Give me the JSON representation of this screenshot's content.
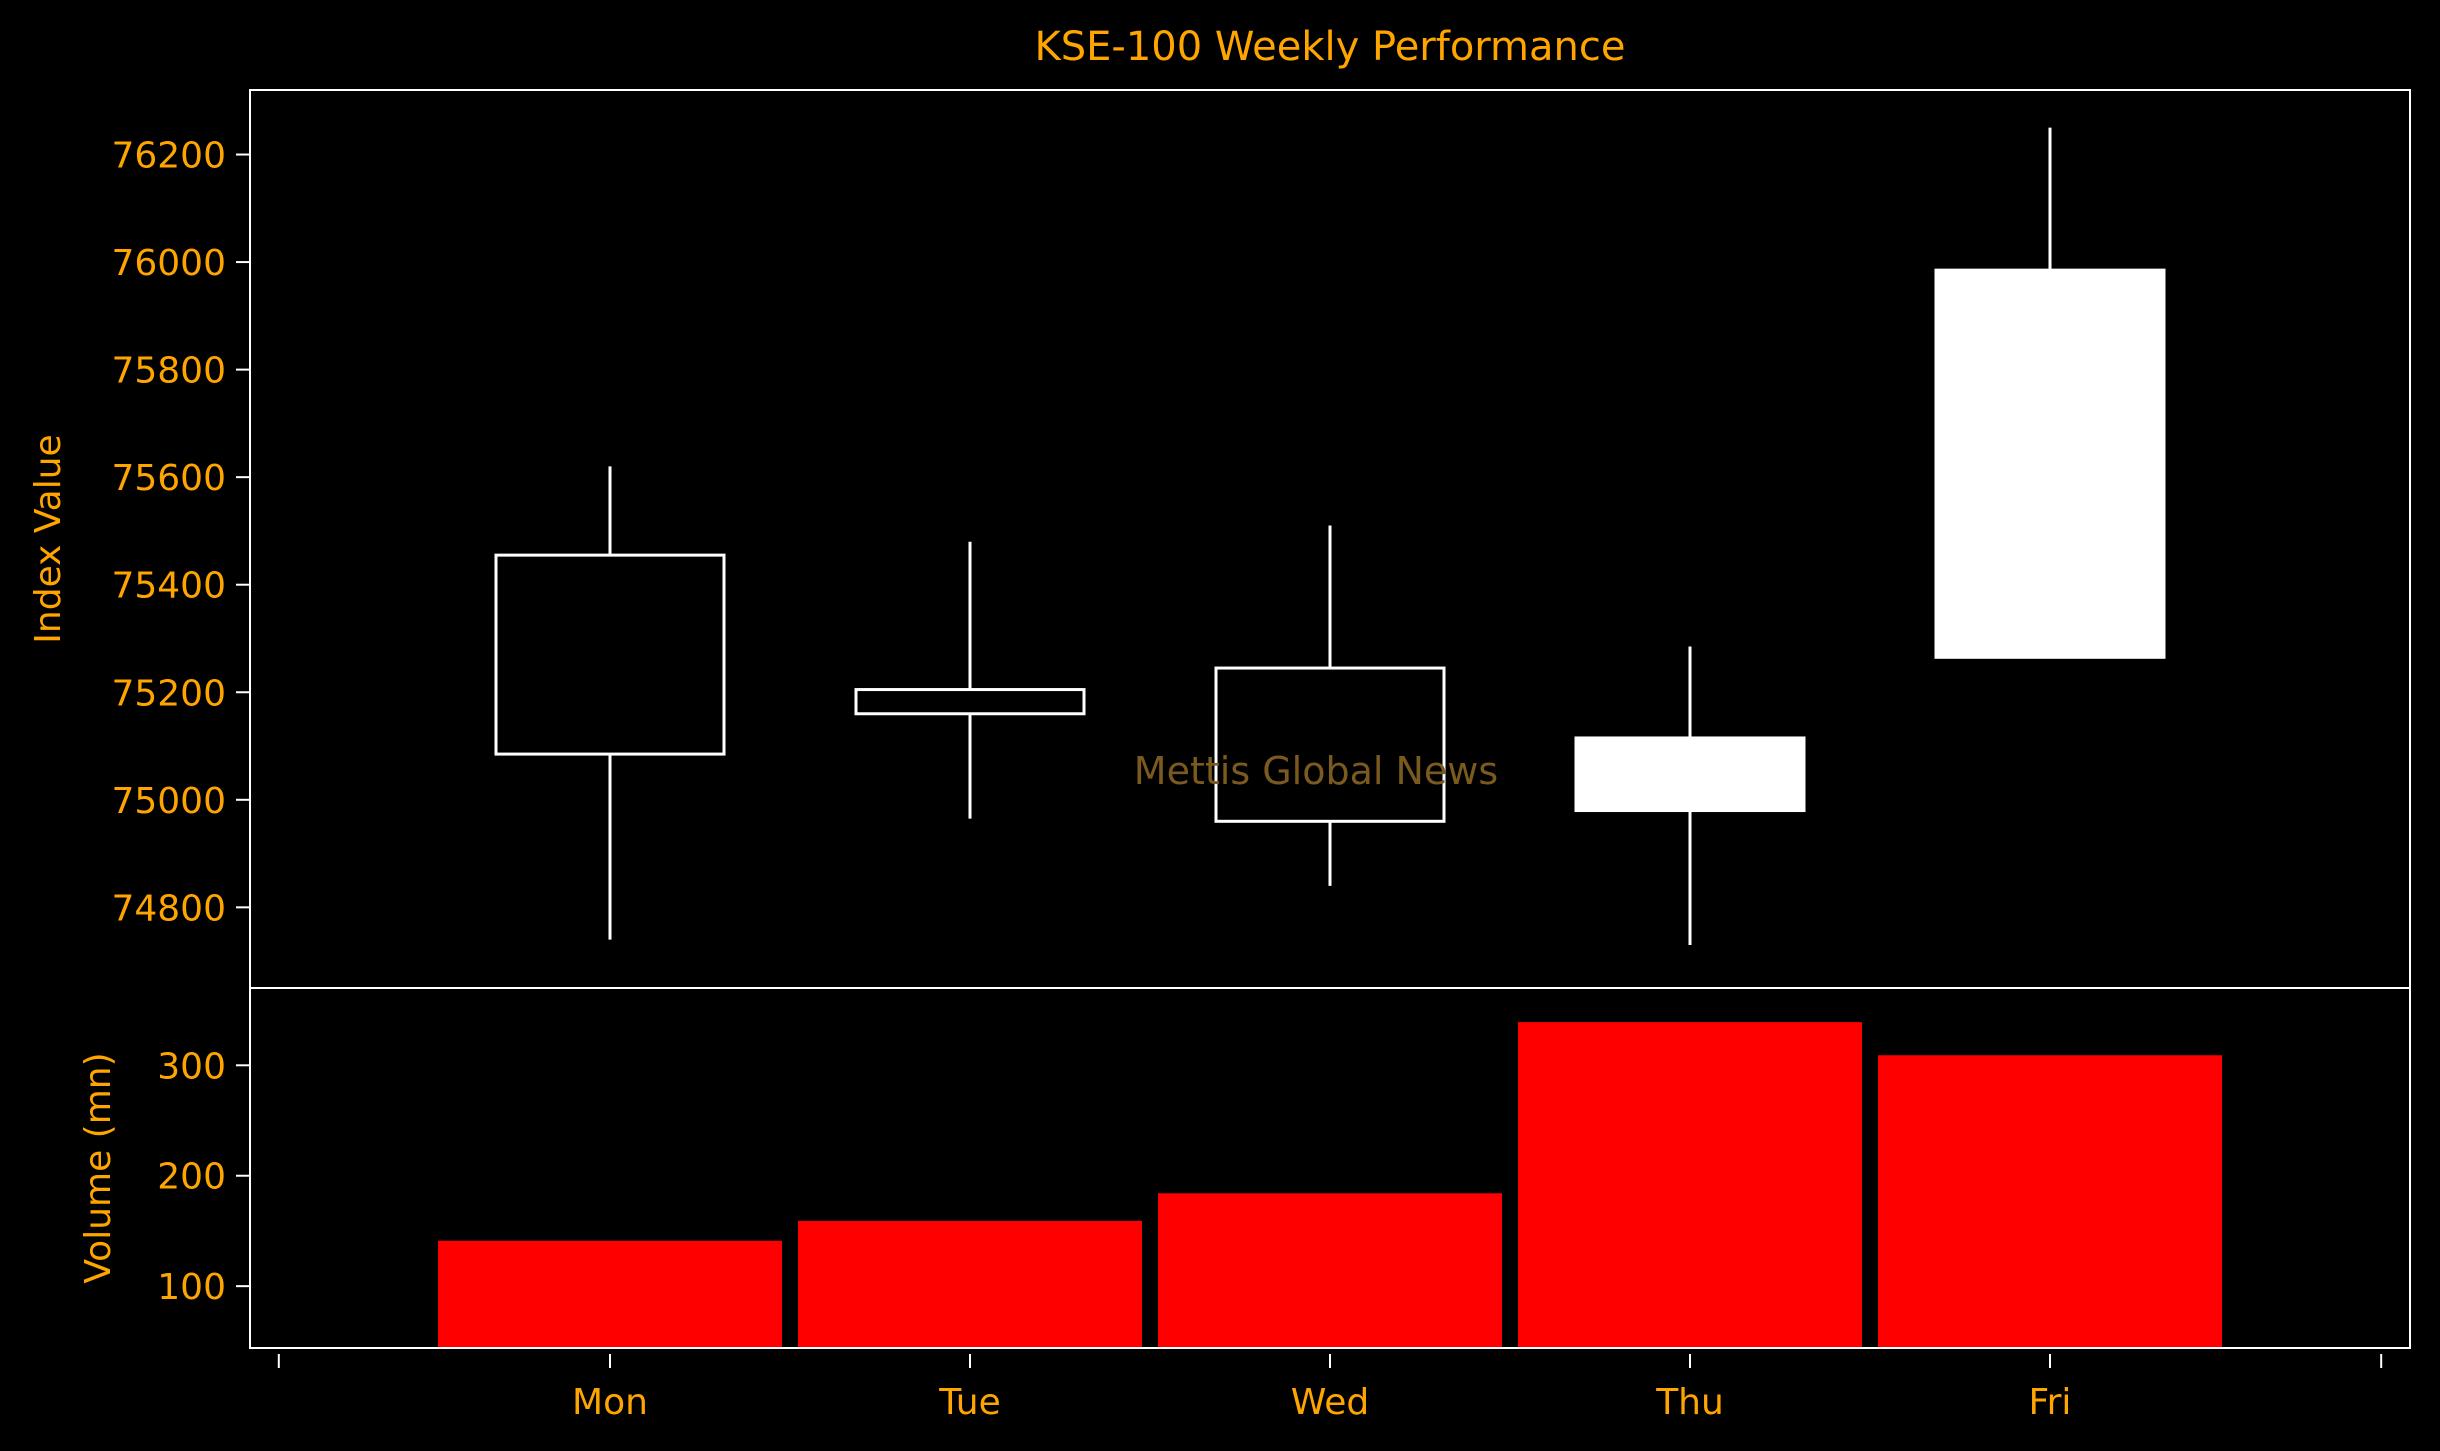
{
  "chart_data": {
    "type": "candlestick",
    "title": "KSE-100 Weekly Performance",
    "watermark": "Mettis Global News",
    "categories": [
      "Mon",
      "Tue",
      "Wed",
      "Thu",
      "Fri"
    ],
    "price": {
      "ylabel": "Index Value",
      "ylim": [
        74650,
        76320
      ],
      "yticks": [
        74800,
        75000,
        75200,
        75400,
        75600,
        75800,
        76000,
        76200
      ],
      "candles": [
        {
          "day": "Mon",
          "open": 75455,
          "high": 75620,
          "low": 74740,
          "close": 75085
        },
        {
          "day": "Tue",
          "open": 75205,
          "high": 75480,
          "low": 74965,
          "close": 75160
        },
        {
          "day": "Wed",
          "open": 75245,
          "high": 75510,
          "low": 74840,
          "close": 74960
        },
        {
          "day": "Thu",
          "open": 74980,
          "high": 75285,
          "low": 74730,
          "close": 75115
        },
        {
          "day": "Fri",
          "open": 75265,
          "high": 76250,
          "low": 75265,
          "close": 75985
        }
      ]
    },
    "volume": {
      "ylabel": "Volume (mn)",
      "ylim": [
        44,
        370
      ],
      "yticks": [
        100,
        200,
        300
      ],
      "values": [
        142,
        160,
        185,
        340,
        310
      ]
    },
    "colors": {
      "background": "#000000",
      "text": "#FFA500",
      "axes": "#FFFFFF",
      "candle_up": "#FFFFFF",
      "candle_down": "#000000",
      "volume_bar": "#FF0000",
      "watermark": "#7A5A1E"
    }
  }
}
